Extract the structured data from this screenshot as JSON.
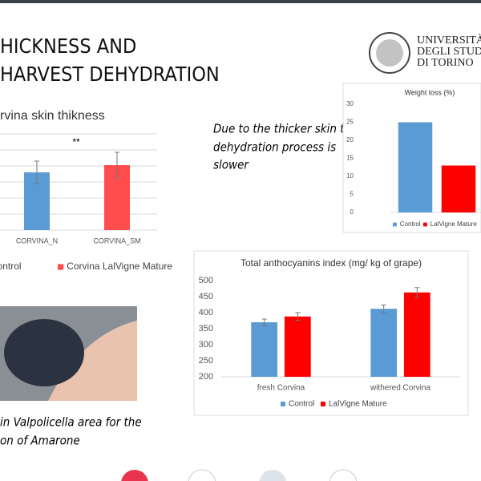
{
  "slide": {
    "title": [
      "HICKNESS AND",
      "HARVEST DEHYDRATION"
    ],
    "logo": [
      "UNIVERSITÀ",
      "DEGLI STUDI",
      "DI TORINO"
    ],
    "note": [
      "Due to the thicker skin the",
      "dehydration process is",
      "slower"
    ],
    "caption": [
      "in Valpolicella area for the",
      "on of Amarone"
    ]
  },
  "chart_data": [
    {
      "type": "bar",
      "title": "rvina skin thikness",
      "annotation": "**",
      "categories": [
        "CORVINA_N",
        "CORVINA_SM"
      ],
      "series": [
        {
          "name": "na Control",
          "color": "#5b9bd5",
          "values": [
            3.6,
            null
          ],
          "errors": [
            0.7,
            null
          ]
        },
        {
          "name": "Corvina LalVigne Mature",
          "color": "#ff4d4d",
          "values": [
            null,
            4.05
          ],
          "errors": [
            null,
            0.8
          ]
        }
      ],
      "ylim": [
        0,
        6
      ],
      "yticks": [
        0,
        1,
        2,
        3,
        4,
        5,
        6
      ],
      "grid": true
    },
    {
      "type": "bar",
      "title": "Weight loss (%)",
      "categories": [
        null
      ],
      "series": [
        {
          "name": "Control",
          "color": "#5b9bd5",
          "values": [
            25
          ]
        },
        {
          "name": "LalVigne Mature",
          "color": "#ff0000",
          "values": [
            13
          ]
        }
      ],
      "ylim": [
        0,
        30
      ],
      "yticks": [
        0,
        5,
        10,
        15,
        20,
        25,
        30
      ],
      "grid": false
    },
    {
      "type": "bar",
      "title": "Total anthocyanins index (mg/ kg of grape)",
      "categories": [
        "fresh Corvina",
        "withered Corvina"
      ],
      "series": [
        {
          "name": "Control",
          "color": "#5b9bd5",
          "values": [
            370,
            412
          ],
          "errors": [
            10,
            12
          ]
        },
        {
          "name": "LalVigne Mature",
          "color": "#ff0000",
          "values": [
            388,
            463
          ],
          "errors": [
            12,
            15
          ]
        }
      ],
      "ylim": [
        200,
        500
      ],
      "yticks": [
        200,
        250,
        300,
        350,
        400,
        450,
        500
      ],
      "grid": false
    }
  ]
}
